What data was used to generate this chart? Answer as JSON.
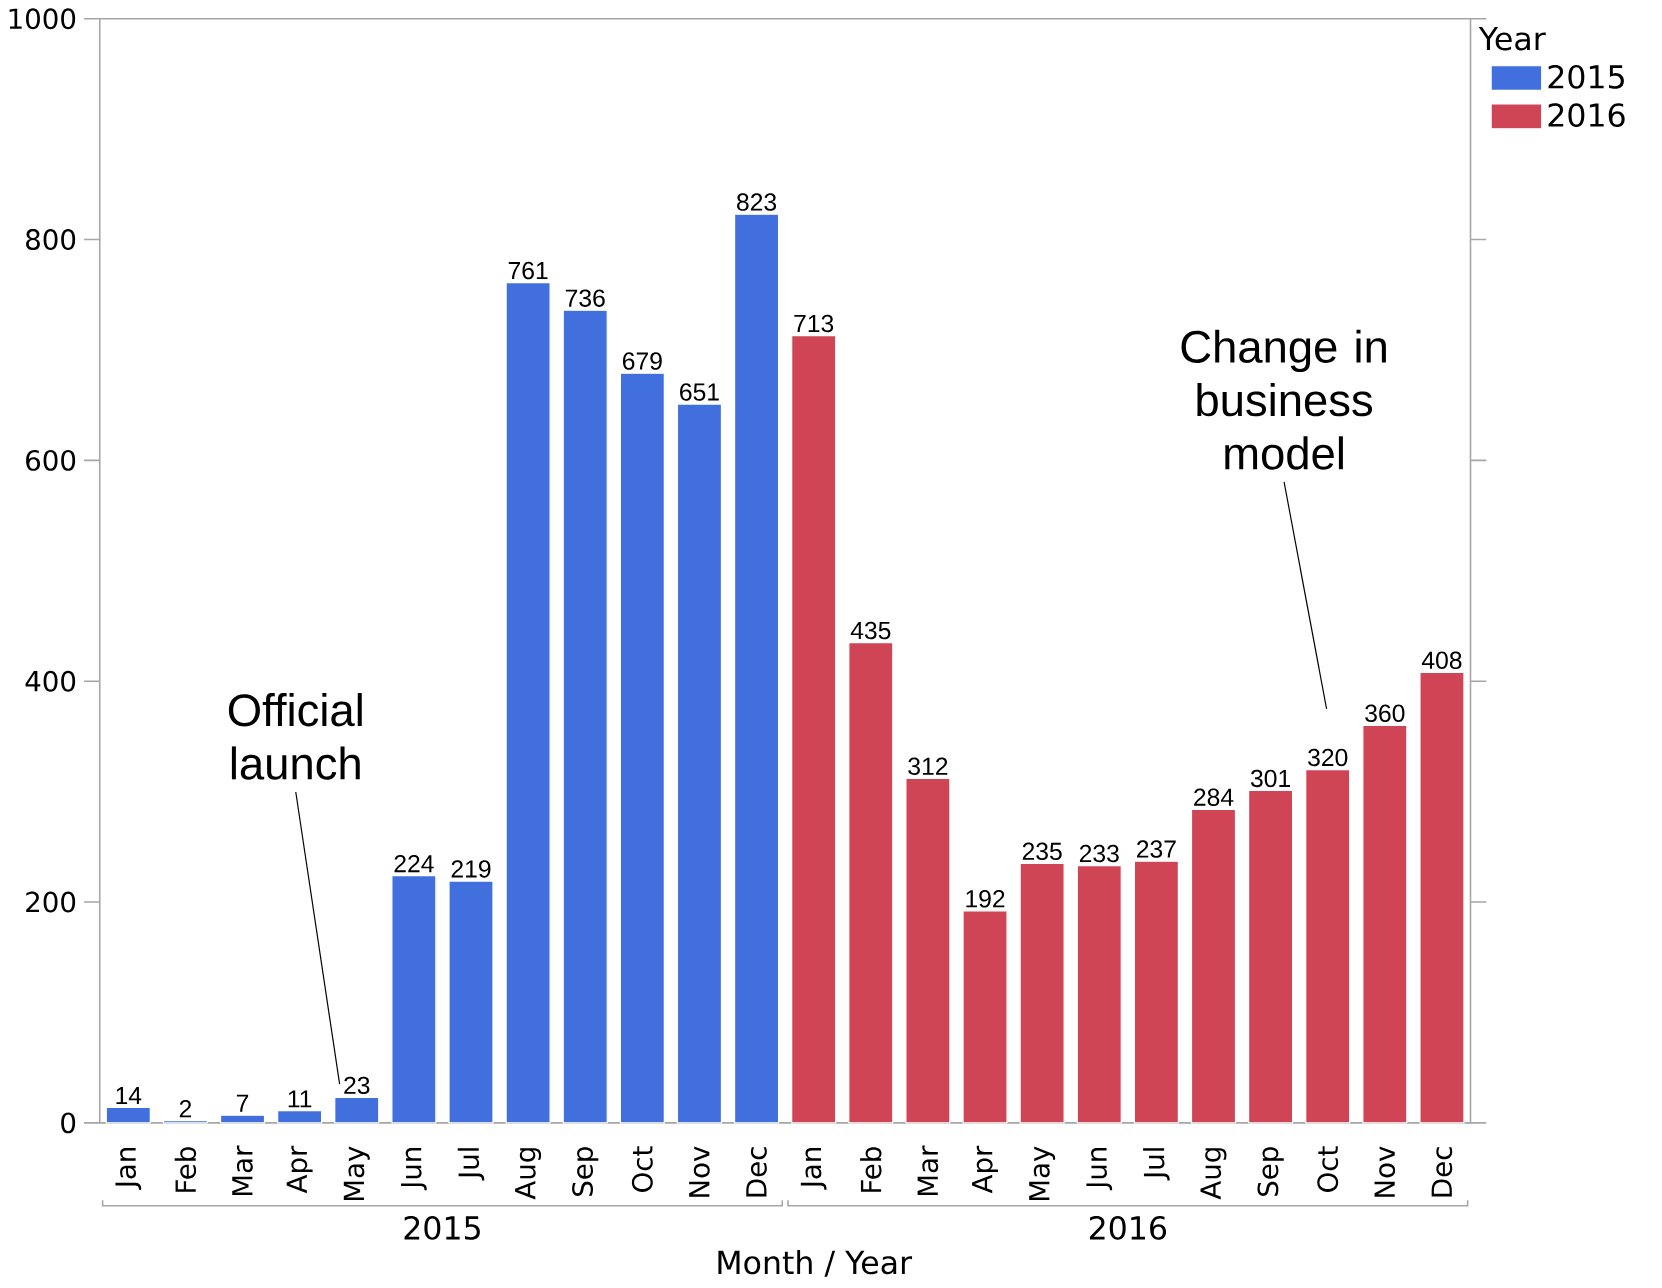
{
  "chart_data": {
    "type": "bar",
    "xlabel": "Month / Year",
    "legend_title": "Year",
    "legend": "top right",
    "grid": false,
    "categories": [
      "Jan",
      "Feb",
      "Mar",
      "Apr",
      "May",
      "Jun",
      "Jul",
      "Aug",
      "Sep",
      "Oct",
      "Nov",
      "Dec",
      "Jan",
      "Feb",
      "Mar",
      "Apr",
      "May",
      "Jun",
      "Jul",
      "Aug",
      "Sep",
      "Oct",
      "Nov",
      "Dec"
    ],
    "series": [
      {
        "name": "2015",
        "color": "#4170de",
        "values": [
          14,
          2,
          7,
          11,
          23,
          224,
          219,
          761,
          736,
          679,
          651,
          823,
          null,
          null,
          null,
          null,
          null,
          null,
          null,
          null,
          null,
          null,
          null,
          null
        ],
        "value_labels": [
          "14",
          "2",
          "7",
          "11",
          "23",
          "224",
          "219",
          "761",
          "736",
          "679",
          "651",
          "823",
          null,
          null,
          null,
          null,
          null,
          null,
          null,
          null,
          null,
          null,
          null,
          null
        ]
      },
      {
        "name": "2016",
        "color": "#d04555",
        "values": [
          null,
          null,
          null,
          null,
          null,
          null,
          null,
          null,
          null,
          null,
          null,
          null,
          713,
          435,
          312,
          192,
          235,
          233,
          237,
          284,
          301,
          320,
          360,
          408
        ],
        "value_labels": [
          null,
          null,
          null,
          null,
          null,
          null,
          null,
          null,
          null,
          null,
          null,
          null,
          "713",
          "435",
          "312",
          "192",
          "235",
          "233",
          "237",
          "284",
          "301",
          "320",
          "360",
          "408"
        ]
      }
    ],
    "ylim": [
      0,
      1000
    ],
    "yticks": [
      0,
      200,
      400,
      600,
      800,
      1000
    ],
    "annotations": [
      "Official launch",
      "Change in business model"
    ]
  }
}
